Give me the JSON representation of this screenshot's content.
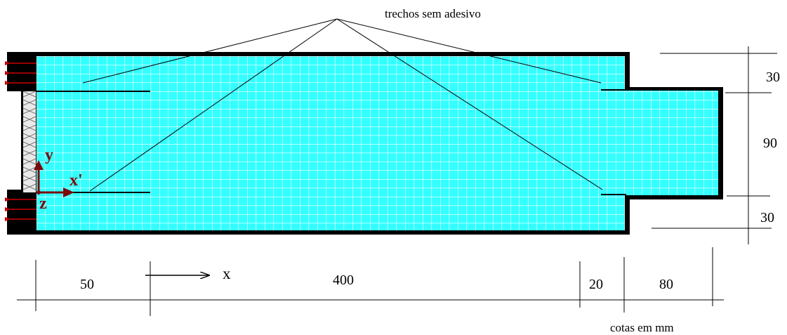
{
  "annotation": "trechos sem adesivo",
  "units_note": "cotas em mm",
  "dimensions": {
    "horizontal": [
      "50",
      "400",
      "20",
      "80"
    ],
    "vertical": [
      "30",
      "90",
      "30"
    ]
  },
  "axes": {
    "y": "y",
    "x_prime": "x'",
    "z": "z",
    "x": "x"
  },
  "colors": {
    "mesh_fill": "#33ffff",
    "grid_line": "#ffffff",
    "outline": "#000000",
    "axis_arrow": "#7a0a0a",
    "load_arrow": "#cc0000"
  }
}
